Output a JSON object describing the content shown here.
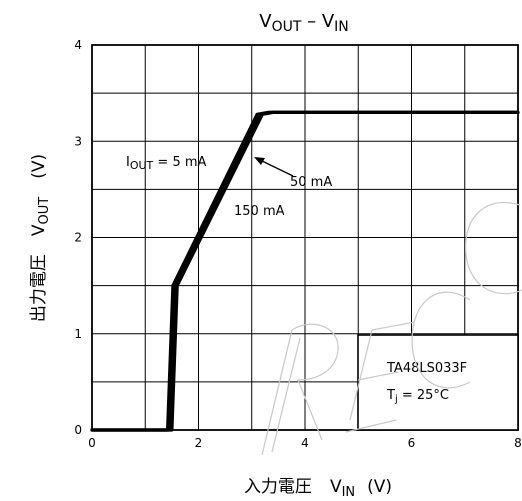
{
  "chart_data": {
    "type": "line",
    "title": {
      "main": "V",
      "sub": "OUT",
      "sep": " – V",
      "sub2": "IN"
    },
    "xlabel": {
      "jp": "入力電圧",
      "sym": "V",
      "sub": "IN",
      "unit": "(V)"
    },
    "ylabel": {
      "jp": "出力電圧",
      "sym": "V",
      "sub": "OUT",
      "unit": "(V)"
    },
    "xlim": [
      0,
      8
    ],
    "ylim": [
      0,
      4
    ],
    "x_ticks": [
      "0",
      "2",
      "4",
      "6",
      "8"
    ],
    "y_ticks": [
      "0",
      "1",
      "2",
      "3",
      "4"
    ],
    "grid": true,
    "series": [
      {
        "name": "IOUT = 5 mA",
        "x": [
          0.0,
          1.42,
          1.52,
          3.1,
          3.3,
          8.0
        ],
        "y": [
          0.0,
          0.0,
          1.5,
          3.28,
          3.3,
          3.3
        ]
      },
      {
        "name": "50 mA",
        "x": [
          0.0,
          1.45,
          1.55,
          3.15,
          3.35,
          8.0
        ],
        "y": [
          0.0,
          0.0,
          1.5,
          3.28,
          3.3,
          3.3
        ]
      },
      {
        "name": "150 mA",
        "x": [
          0.0,
          1.5,
          1.6,
          3.2,
          3.4,
          8.0
        ],
        "y": [
          0.0,
          0.0,
          1.5,
          3.28,
          3.3,
          3.3
        ]
      }
    ],
    "annotations": {
      "iout_label": {
        "pre": "I",
        "sub": "OUT",
        "post": " = 5 mA"
      },
      "label_50": "50 mA",
      "label_150": "150 mA"
    },
    "info_box": {
      "part": "TA48LS033F",
      "temp": {
        "pre": "T",
        "sub": "j",
        "post": " = 25°C"
      }
    },
    "colors": {
      "line": "#000000",
      "grid": "#000000",
      "watermark": "#c8c8c8"
    }
  }
}
